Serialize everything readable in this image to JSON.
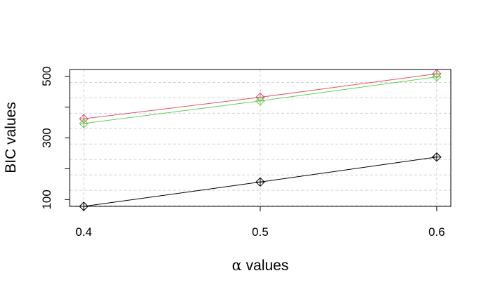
{
  "chart_data": {
    "type": "line",
    "title": "",
    "xlabel": {
      "symbol": "α",
      "text": " values"
    },
    "ylabel": "BIC values",
    "x": [
      0.4,
      0.5,
      0.6
    ],
    "x_tick_labels": [
      "0.4",
      "0.5",
      "0.6"
    ],
    "y_ticks": [
      100,
      300,
      500
    ],
    "y_tick_labels": [
      "100",
      "300",
      "500"
    ],
    "xlim": [
      0.392,
      0.608
    ],
    "ylim": [
      78,
      522
    ],
    "grid": true,
    "legend": "none",
    "marker": "diamond-plus",
    "series": [
      {
        "color": "#000000",
        "values": [
          78,
          157,
          238
        ]
      },
      {
        "color": "#DF536B",
        "values": [
          362,
          432,
          508
        ]
      },
      {
        "color": "#61D04F",
        "values": [
          347,
          420,
          498
        ]
      }
    ]
  }
}
